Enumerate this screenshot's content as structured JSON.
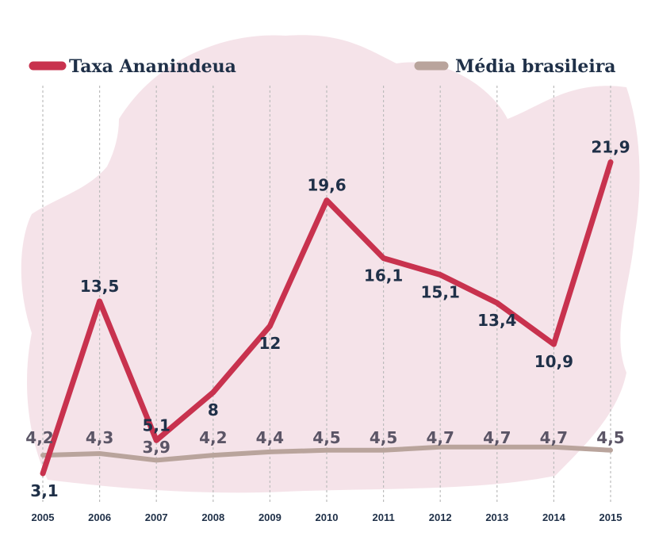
{
  "colors": {
    "primary": "#c8324e",
    "average": "#b9a49c",
    "text": "#1f3048",
    "text_avg": "#5b5566",
    "background_blob": "#f2d9e1",
    "grid": "#bcbcbc"
  },
  "chart_data": {
    "type": "line",
    "title": "",
    "xlabel": "",
    "ylabel": "",
    "categories": [
      "2005",
      "2006",
      "2007",
      "2008",
      "2009",
      "2010",
      "2011",
      "2012",
      "2013",
      "2014",
      "2015"
    ],
    "series": [
      {
        "name": "Taxa Ananindeua",
        "values": [
          3.1,
          13.5,
          5.1,
          8,
          12,
          19.6,
          16.1,
          15.1,
          13.4,
          10.9,
          21.9
        ],
        "labels": [
          "3,1",
          "13,5",
          "5,1",
          "8",
          "12",
          "19,6",
          "16,1",
          "15,1",
          "13,4",
          "10,9",
          "21,9"
        ]
      },
      {
        "name": "Média brasileira",
        "values": [
          4.2,
          4.3,
          3.9,
          4.2,
          4.4,
          4.5,
          4.5,
          4.7,
          4.7,
          4.7,
          4.5
        ],
        "labels": [
          "4,2",
          "4,3",
          "3,9",
          "4,2",
          "4,4",
          "4,5",
          "4,5",
          "4,7",
          "4,7",
          "4,7",
          "4,5"
        ]
      }
    ],
    "grid": "vertical-dashed",
    "legend_position": "top"
  }
}
